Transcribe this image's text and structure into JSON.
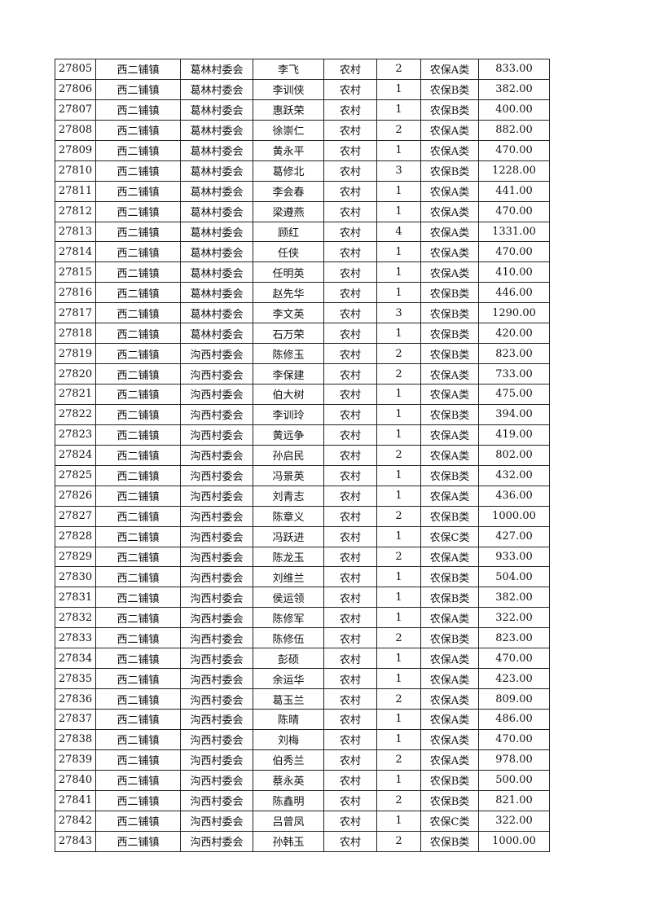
{
  "table": {
    "rows": [
      [
        "27805",
        "西二铺镇",
        "葛林村委会",
        "李飞",
        "农村",
        "2",
        "农保A类",
        "833.00"
      ],
      [
        "27806",
        "西二铺镇",
        "葛林村委会",
        "李训侠",
        "农村",
        "1",
        "农保B类",
        "382.00"
      ],
      [
        "27807",
        "西二铺镇",
        "葛林村委会",
        "惠跃荣",
        "农村",
        "1",
        "农保B类",
        "400.00"
      ],
      [
        "27808",
        "西二铺镇",
        "葛林村委会",
        "徐崇仁",
        "农村",
        "2",
        "农保A类",
        "882.00"
      ],
      [
        "27809",
        "西二铺镇",
        "葛林村委会",
        "黄永平",
        "农村",
        "1",
        "农保A类",
        "470.00"
      ],
      [
        "27810",
        "西二铺镇",
        "葛林村委会",
        "葛修北",
        "农村",
        "3",
        "农保B类",
        "1228.00"
      ],
      [
        "27811",
        "西二铺镇",
        "葛林村委会",
        "李会春",
        "农村",
        "1",
        "农保A类",
        "441.00"
      ],
      [
        "27812",
        "西二铺镇",
        "葛林村委会",
        "梁遵燕",
        "农村",
        "1",
        "农保A类",
        "470.00"
      ],
      [
        "27813",
        "西二铺镇",
        "葛林村委会",
        "顾红",
        "农村",
        "4",
        "农保A类",
        "1331.00"
      ],
      [
        "27814",
        "西二铺镇",
        "葛林村委会",
        "任侠",
        "农村",
        "1",
        "农保A类",
        "470.00"
      ],
      [
        "27815",
        "西二铺镇",
        "葛林村委会",
        "任明英",
        "农村",
        "1",
        "农保A类",
        "410.00"
      ],
      [
        "27816",
        "西二铺镇",
        "葛林村委会",
        "赵先华",
        "农村",
        "1",
        "农保B类",
        "446.00"
      ],
      [
        "27817",
        "西二铺镇",
        "葛林村委会",
        "李文英",
        "农村",
        "3",
        "农保B类",
        "1290.00"
      ],
      [
        "27818",
        "西二铺镇",
        "葛林村委会",
        "石万荣",
        "农村",
        "1",
        "农保B类",
        "420.00"
      ],
      [
        "27819",
        "西二铺镇",
        "沟西村委会",
        "陈修玉",
        "农村",
        "2",
        "农保B类",
        "823.00"
      ],
      [
        "27820",
        "西二铺镇",
        "沟西村委会",
        "李保建",
        "农村",
        "2",
        "农保A类",
        "733.00"
      ],
      [
        "27821",
        "西二铺镇",
        "沟西村委会",
        "伯大树",
        "农村",
        "1",
        "农保A类",
        "475.00"
      ],
      [
        "27822",
        "西二铺镇",
        "沟西村委会",
        "李训玲",
        "农村",
        "1",
        "农保B类",
        "394.00"
      ],
      [
        "27823",
        "西二铺镇",
        "沟西村委会",
        "黄远争",
        "农村",
        "1",
        "农保A类",
        "419.00"
      ],
      [
        "27824",
        "西二铺镇",
        "沟西村委会",
        "孙启民",
        "农村",
        "2",
        "农保A类",
        "802.00"
      ],
      [
        "27825",
        "西二铺镇",
        "沟西村委会",
        "冯景英",
        "农村",
        "1",
        "农保B类",
        "432.00"
      ],
      [
        "27826",
        "西二铺镇",
        "沟西村委会",
        "刘青志",
        "农村",
        "1",
        "农保A类",
        "436.00"
      ],
      [
        "27827",
        "西二铺镇",
        "沟西村委会",
        "陈章义",
        "农村",
        "2",
        "农保B类",
        "1000.00"
      ],
      [
        "27828",
        "西二铺镇",
        "沟西村委会",
        "冯跃进",
        "农村",
        "1",
        "农保C类",
        "427.00"
      ],
      [
        "27829",
        "西二铺镇",
        "沟西村委会",
        "陈龙玉",
        "农村",
        "2",
        "农保A类",
        "933.00"
      ],
      [
        "27830",
        "西二铺镇",
        "沟西村委会",
        "刘维兰",
        "农村",
        "1",
        "农保B类",
        "504.00"
      ],
      [
        "27831",
        "西二铺镇",
        "沟西村委会",
        "侯运领",
        "农村",
        "1",
        "农保B类",
        "382.00"
      ],
      [
        "27832",
        "西二铺镇",
        "沟西村委会",
        "陈修军",
        "农村",
        "1",
        "农保A类",
        "322.00"
      ],
      [
        "27833",
        "西二铺镇",
        "沟西村委会",
        "陈修伍",
        "农村",
        "2",
        "农保B类",
        "823.00"
      ],
      [
        "27834",
        "西二铺镇",
        "沟西村委会",
        "彭硕",
        "农村",
        "1",
        "农保A类",
        "470.00"
      ],
      [
        "27835",
        "西二铺镇",
        "沟西村委会",
        "余运华",
        "农村",
        "1",
        "农保A类",
        "423.00"
      ],
      [
        "27836",
        "西二铺镇",
        "沟西村委会",
        "葛玉兰",
        "农村",
        "2",
        "农保A类",
        "809.00"
      ],
      [
        "27837",
        "西二铺镇",
        "沟西村委会",
        "陈晴",
        "农村",
        "1",
        "农保A类",
        "486.00"
      ],
      [
        "27838",
        "西二铺镇",
        "沟西村委会",
        "刘梅",
        "农村",
        "1",
        "农保A类",
        "470.00"
      ],
      [
        "27839",
        "西二铺镇",
        "沟西村委会",
        "伯秀兰",
        "农村",
        "2",
        "农保A类",
        "978.00"
      ],
      [
        "27840",
        "西二铺镇",
        "沟西村委会",
        "蔡永英",
        "农村",
        "1",
        "农保B类",
        "500.00"
      ],
      [
        "27841",
        "西二铺镇",
        "沟西村委会",
        "陈鑫明",
        "农村",
        "2",
        "农保B类",
        "821.00"
      ],
      [
        "27842",
        "西二铺镇",
        "沟西村委会",
        "吕曾凤",
        "农村",
        "1",
        "农保C类",
        "322.00"
      ],
      [
        "27843",
        "西二铺镇",
        "沟西村委会",
        "孙韩玉",
        "农村",
        "2",
        "农保B类",
        "1000.00"
      ]
    ]
  }
}
